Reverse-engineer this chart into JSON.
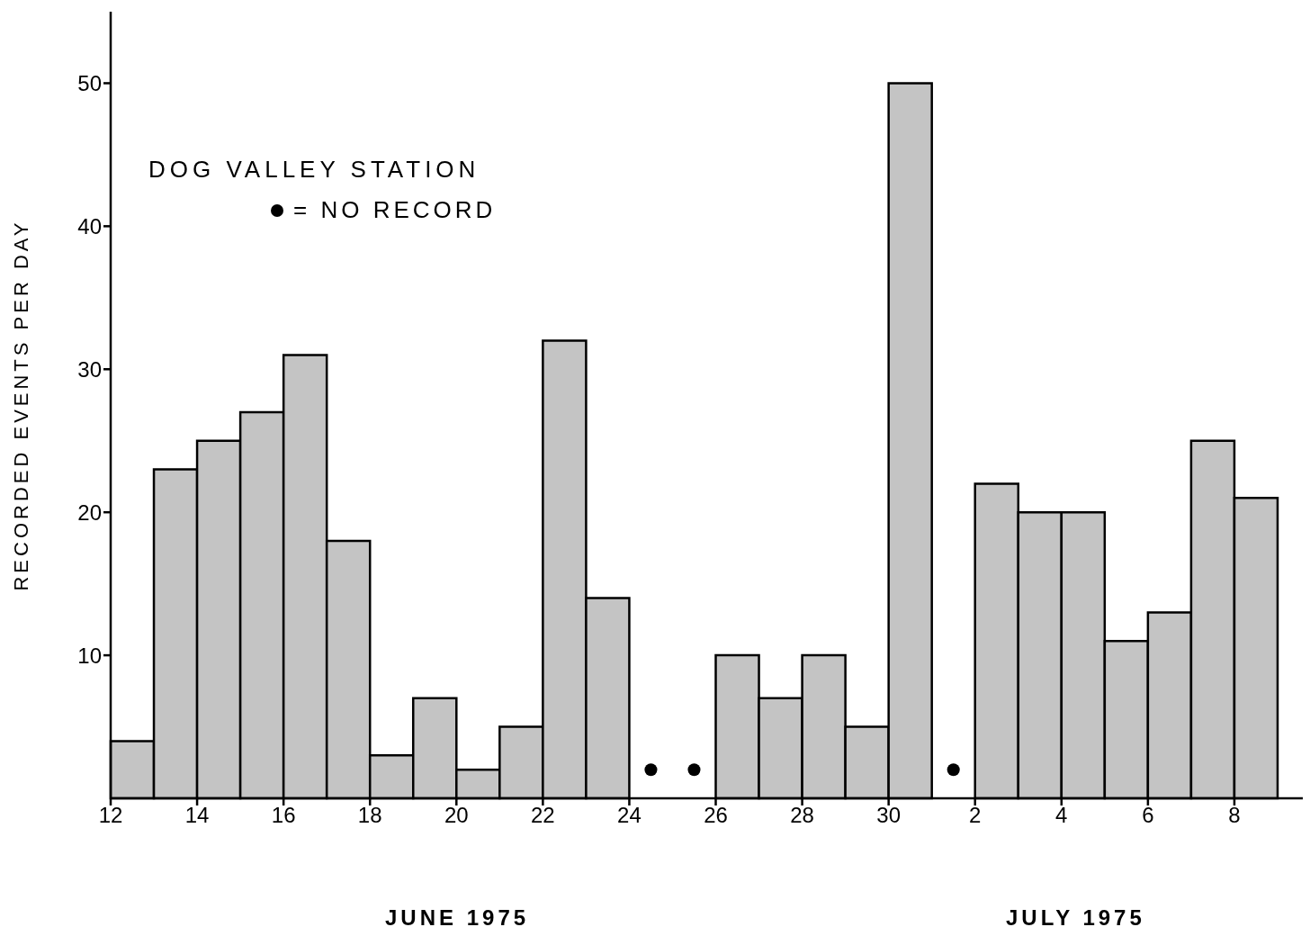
{
  "chart_data": {
    "type": "histogram",
    "title": "DOG VALLEY STATION",
    "ylabel": "RECORDED EVENTS PER DAY",
    "annotations": [
      "JUNE 1975",
      "JULY 1975"
    ],
    "series": [
      {
        "color": "#c4c4c4",
        "bins": [
          "--06-12",
          "--06-13",
          "--06-14",
          "--06-15",
          "--06-16",
          "--06-17",
          "--06-18",
          "--06-19",
          "--06-20",
          "--06-21",
          "--06-22",
          "--06-23",
          "--06-24",
          "--06-25",
          "--06-26",
          "--06-27",
          "--06-28",
          "--06-29",
          "--06-30",
          "--07-01",
          "--07-02",
          "--07-03",
          "--07-04",
          "--07-05",
          "--07-06",
          "--07-07",
          "--07-08",
          "--07-09"
        ],
        "values": [
          4,
          23,
          25,
          27,
          31,
          18,
          3,
          7,
          2,
          5,
          32,
          14,
          null,
          null,
          10,
          7,
          10,
          5,
          50,
          null,
          22,
          20,
          20,
          11,
          13,
          25,
          21
        ]
      },
      {
        "type": "scatter",
        "name": "= NO RECORD",
        "color": "#000000",
        "marker": "circle",
        "x": [
          "--06-24T12:00",
          "--06-25T12:00",
          "--07-01T12:00"
        ],
        "values": [
          2,
          2,
          2
        ]
      }
    ],
    "xlim": [
      "--06-12",
      "--07-09T14:00"
    ],
    "xticks": [
      {
        "value": "--06-12",
        "label": "12"
      },
      {
        "value": "--06-14",
        "label": "14"
      },
      {
        "value": "--06-16",
        "label": "16"
      },
      {
        "value": "--06-18",
        "label": "18"
      },
      {
        "value": "--06-20",
        "label": "20"
      },
      {
        "value": "--06-22",
        "label": "22"
      },
      {
        "value": "--06-24",
        "label": "24"
      },
      {
        "value": "--06-26",
        "label": "26"
      },
      {
        "value": "--06-28",
        "label": "28"
      },
      {
        "value": "--06-30",
        "label": "30"
      },
      {
        "value": "--07-02",
        "label": "2"
      },
      {
        "value": "--07-04",
        "label": "4"
      },
      {
        "value": "--07-06",
        "label": "6"
      },
      {
        "value": "--07-08",
        "label": "8"
      }
    ],
    "ylim": [
      0,
      55
    ],
    "yticks": [
      10,
      20,
      30,
      40,
      50
    ],
    "grid": false,
    "legend": "top left"
  }
}
